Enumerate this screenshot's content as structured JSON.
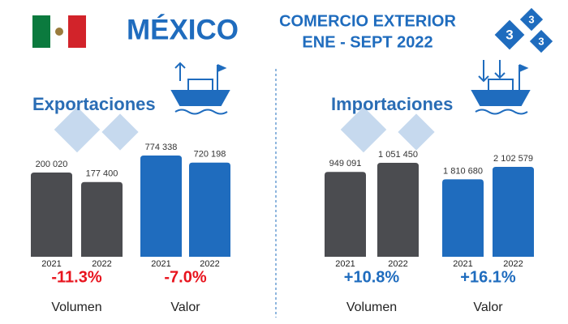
{
  "header": {
    "title": "MÉXICO",
    "subtitle_line1": "COMERCIO EXTERIOR",
    "subtitle_line2": "ENE - SEPT 2022",
    "logo": [
      "3",
      "3",
      "3"
    ]
  },
  "sections": [
    {
      "title": "Exportaciones"
    },
    {
      "title": "Importaciones"
    }
  ],
  "chart_data": [
    {
      "type": "bar",
      "label": "Volumen",
      "categories": [
        "2021",
        "2022"
      ],
      "values": [
        200020,
        177400
      ],
      "value_labels": [
        "200 020",
        "177 400"
      ],
      "color": "#4b4c50",
      "change": "-11.3%",
      "change_color": "#e8141e"
    },
    {
      "type": "bar",
      "label": "Valor",
      "categories": [
        "2021",
        "2022"
      ],
      "values": [
        774338,
        720198
      ],
      "value_labels": [
        "774 338",
        "720 198"
      ],
      "color": "#1f6cbe",
      "change": "-7.0%",
      "change_color": "#e8141e"
    },
    {
      "type": "bar",
      "label": "Volumen",
      "categories": [
        "2021",
        "2022"
      ],
      "values": [
        949091,
        1051450
      ],
      "value_labels": [
        "949 091",
        "1 051 450"
      ],
      "color": "#4b4c50",
      "change": "+10.8%",
      "change_color": "#1f6cbe"
    },
    {
      "type": "bar",
      "label": "Valor",
      "categories": [
        "2021",
        "2022"
      ],
      "values": [
        1810680,
        2102579
      ],
      "value_labels": [
        "1 810 680",
        "2 102 579"
      ],
      "color": "#1f6cbe",
      "change": "+16.1%",
      "change_color": "#1f6cbe"
    }
  ]
}
